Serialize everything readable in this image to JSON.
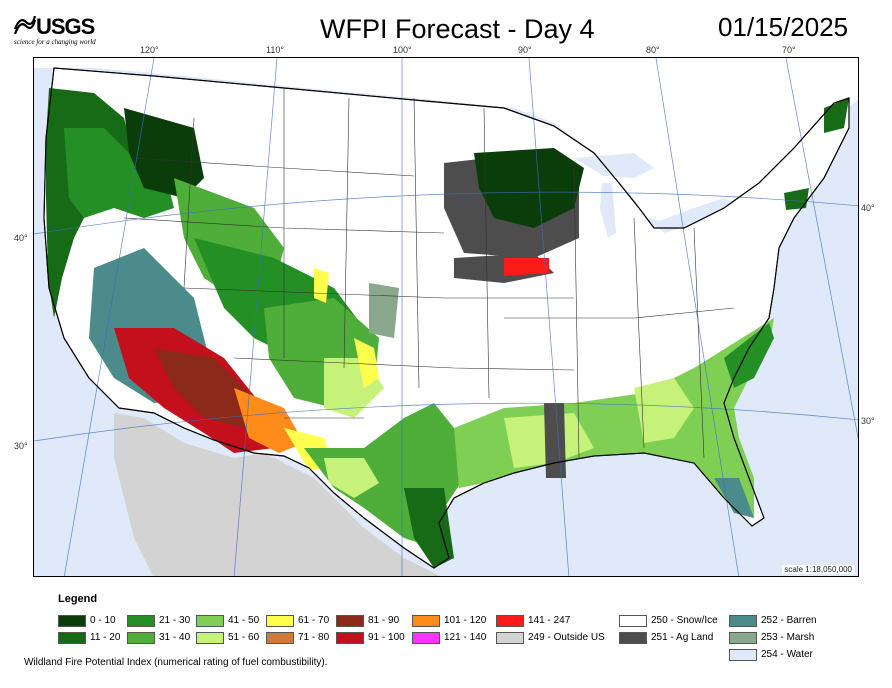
{
  "header": {
    "logo_text": "USGS",
    "logo_tagline": "science for a changing world",
    "title": "WFPI Forecast - Day 4",
    "date": "01/15/2025"
  },
  "map": {
    "scale_text": "scale 1:18,050,000",
    "longitude_labels": [
      "120°",
      "110°",
      "100°",
      "90°",
      "80°",
      "70°"
    ],
    "latitude_labels_left": [
      "40°",
      "30°"
    ],
    "latitude_labels_right": [
      "40°",
      "30°"
    ]
  },
  "legend": {
    "title": "Legend",
    "items": [
      {
        "label": "0 - 10",
        "color": "#0b3d0b"
      },
      {
        "label": "11 - 20",
        "color": "#176b17"
      },
      {
        "label": "21 - 30",
        "color": "#248f24"
      },
      {
        "label": "31 - 40",
        "color": "#4fae3a"
      },
      {
        "label": "41 - 50",
        "color": "#7fcf55"
      },
      {
        "label": "51 - 60",
        "color": "#c7f27a"
      },
      {
        "label": "61 - 70",
        "color": "#ffff4d"
      },
      {
        "label": "71 - 80",
        "color": "#cc7a3d"
      },
      {
        "label": "81 - 90",
        "color": "#8b2a1a"
      },
      {
        "label": "91 - 100",
        "color": "#c4101c"
      },
      {
        "label": "101 - 120",
        "color": "#ff8c1a"
      },
      {
        "label": "121 - 140",
        "color": "#ff33ff"
      },
      {
        "label": "141 - 247",
        "color": "#ff1a1a"
      },
      {
        "label": "249 - Outside US",
        "color": "#d3d3d3"
      },
      {
        "label": "250 - Snow/Ice",
        "color": "#ffffff"
      },
      {
        "label": "251 - Ag Land",
        "color": "#4d4d4d"
      },
      {
        "label": "252 - Barren",
        "color": "#4b8b8b"
      },
      {
        "label": "253 - Marsh",
        "color": "#8aa88e"
      },
      {
        "label": "254 - Water",
        "color": "#dfe9f9"
      }
    ]
  },
  "footnote": "Wildland Fire Potential Index (numerical rating of fuel combustibility)."
}
